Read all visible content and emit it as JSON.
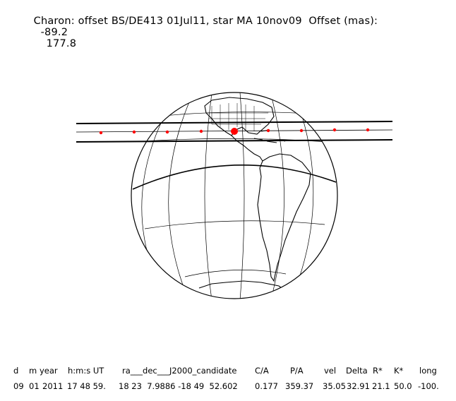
{
  "title": {
    "text": "Charon: offset BS/DE413 01Jul11, star MA 10nov09  Offset (mas):",
    "offset_ra": "-89.2",
    "offset_dec": "177.8"
  },
  "table": {
    "headers": [
      "d",
      "m",
      "year",
      "h:m:s UT",
      "ra___dec___J2000_candidate",
      "C/A",
      "P/A",
      "vel",
      "Delta",
      "R*",
      "K*",
      "long"
    ],
    "values": [
      "09",
      "01",
      "2011",
      "17 48 59.",
      "18 23  7.9886 -18 49  52.602",
      "0.177",
      "359.37",
      "35.05",
      "32.91",
      "21.1",
      "50.0",
      "-100."
    ]
  },
  "colors": {
    "background": "#ffffff",
    "ink": "#000000",
    "track_dots": "#ff0000"
  }
}
